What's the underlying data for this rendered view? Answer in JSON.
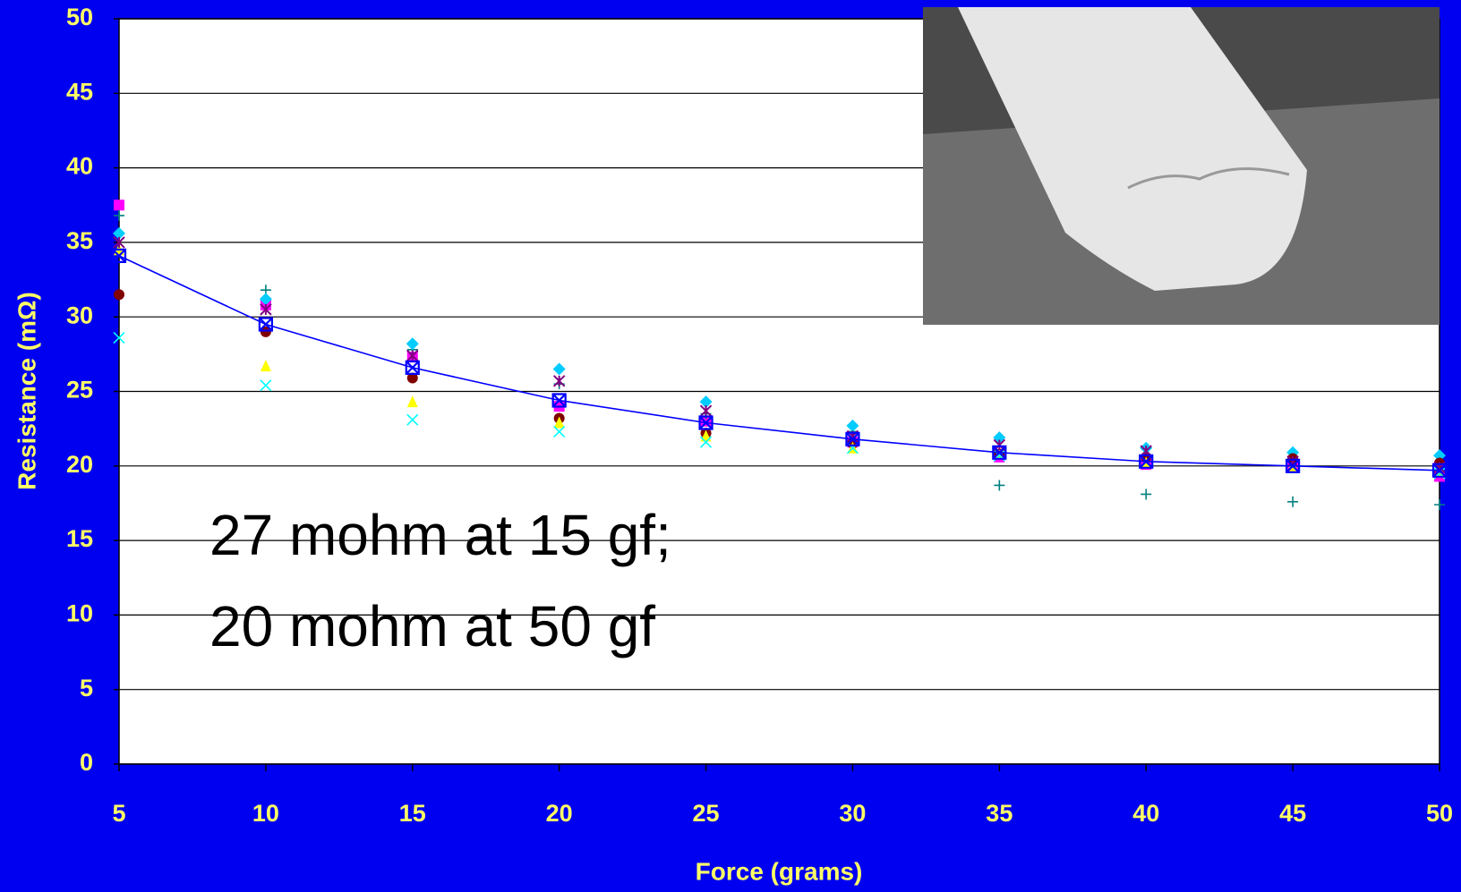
{
  "chart_data": {
    "type": "scatter",
    "xlabel": "Force (grams)",
    "ylabel": "Resistance (mΩ)",
    "annotations": [
      "27 mohm at 15 gf;",
      "20 mohm at 50 gf"
    ],
    "x": [
      5,
      10,
      15,
      20,
      25,
      30,
      35,
      40,
      45,
      50
    ],
    "xlim": [
      5,
      50
    ],
    "xticks": [
      5,
      10,
      15,
      20,
      25,
      30,
      35,
      40,
      45,
      50
    ],
    "ylim": [
      0,
      50
    ],
    "yticks": [
      0,
      5,
      10,
      15,
      20,
      25,
      30,
      35,
      40,
      45,
      50
    ],
    "grid": true,
    "series": [
      {
        "color": "#ff00ff",
        "marker": "square",
        "values": [
          37.5,
          30.8,
          27.3,
          24.0,
          23.0,
          21.6,
          20.6,
          20.1,
          19.9,
          19.3
        ]
      },
      {
        "color": "#008080",
        "marker": "plus",
        "values": [
          36.8,
          31.8,
          27.8,
          25.5,
          23.5,
          22.3,
          18.7,
          18.1,
          17.6,
          17.4
        ]
      },
      {
        "color": "#00ccff",
        "marker": "diamond",
        "values": [
          35.6,
          31.2,
          28.2,
          26.5,
          24.3,
          22.7,
          21.9,
          21.2,
          20.9,
          20.7
        ]
      },
      {
        "color": "#800000",
        "marker": "circle",
        "values": [
          31.5,
          29.0,
          25.9,
          23.2,
          22.2,
          21.5,
          20.8,
          20.6,
          20.5,
          20.2
        ]
      },
      {
        "color": "#ffff00",
        "marker": "triangle",
        "values": [
          34.5,
          26.7,
          24.3,
          22.9,
          22.0,
          21.2,
          20.8,
          20.2,
          20.0,
          19.6
        ]
      },
      {
        "color": "#00ffff",
        "marker": "x",
        "values": [
          28.6,
          25.4,
          23.1,
          22.3,
          21.6,
          21.2,
          20.7,
          20.3,
          20.0,
          19.5
        ]
      },
      {
        "color": "#800080",
        "marker": "star",
        "values": [
          35.0,
          30.5,
          27.4,
          25.7,
          23.7,
          22.0,
          21.4,
          21.0,
          20.3,
          19.9
        ]
      },
      {
        "color": "#0000ff",
        "marker": "squarex",
        "line": true,
        "values": [
          34.1,
          29.5,
          26.6,
          24.4,
          22.9,
          21.8,
          20.9,
          20.3,
          20.0,
          19.7
        ]
      }
    ]
  }
}
